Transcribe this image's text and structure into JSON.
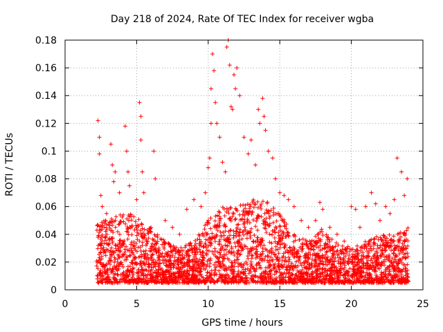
{
  "chart_data": {
    "type": "scatter",
    "title": "Day 218 of 2024, Rate Of TEC Index for receiver wgba",
    "xlabel": "GPS time / hours",
    "ylabel": "ROTI / TECUs",
    "xlim": [
      0,
      25
    ],
    "ylim": [
      0,
      0.18
    ],
    "x_ticks": [
      0,
      5,
      10,
      15,
      20,
      25
    ],
    "y_ticks": [
      0,
      0.02,
      0.04,
      0.06,
      0.08,
      0.1,
      0.12,
      0.14,
      0.16,
      0.18
    ],
    "x_tick_labels": [
      "0",
      "5",
      "10",
      "15",
      "20",
      "25"
    ],
    "y_tick_labels": [
      "0",
      "0.02",
      "0.04",
      "0.06",
      "0.08",
      "0.1",
      "0.12",
      "0.14",
      "0.16",
      "0.18"
    ],
    "grid": true,
    "marker": "+",
    "colors": {
      "points": "#ff0000",
      "grid": "#a0a0a0",
      "axes": "#000000"
    },
    "series": [
      {
        "x": [
          2.3,
          2.4,
          2.4,
          2.5,
          2.6,
          2.9,
          3.2,
          3.3,
          3.4,
          3.5,
          3.8,
          4.2,
          4.3,
          4.4,
          4.5,
          5.0,
          5.2,
          5.3,
          5.3,
          5.4,
          5.5,
          6.0,
          6.2,
          6.3,
          7.0,
          7.5,
          8.0,
          8.5,
          9.0,
          9.5,
          9.8,
          10.0,
          10.1,
          10.2,
          10.2,
          10.3,
          10.4,
          10.5,
          10.6,
          10.8,
          11.0,
          11.2,
          11.3,
          11.4,
          11.5,
          11.6,
          11.7,
          11.8,
          11.9,
          12.0,
          12.2,
          12.5,
          12.8,
          13.0,
          13.3,
          13.5,
          13.6,
          13.8,
          13.9,
          14.0,
          14.2,
          14.5,
          14.7,
          15.0,
          15.3,
          15.6,
          16.0,
          16.5,
          17.0,
          17.5,
          17.8,
          18.0,
          18.5,
          19.0,
          19.5,
          20.0,
          20.3,
          20.6,
          21.0,
          21.4,
          21.7,
          22.0,
          22.4,
          22.7,
          23.0,
          23.2,
          23.5,
          23.7,
          23.9
        ],
        "y": [
          0.122,
          0.11,
          0.098,
          0.068,
          0.06,
          0.055,
          0.105,
          0.09,
          0.078,
          0.085,
          0.07,
          0.118,
          0.1,
          0.085,
          0.075,
          0.065,
          0.135,
          0.125,
          0.108,
          0.085,
          0.07,
          0.045,
          0.1,
          0.08,
          0.05,
          0.045,
          0.04,
          0.058,
          0.065,
          0.06,
          0.07,
          0.088,
          0.095,
          0.12,
          0.145,
          0.17,
          0.158,
          0.135,
          0.12,
          0.11,
          0.092,
          0.085,
          0.175,
          0.18,
          0.162,
          0.132,
          0.13,
          0.155,
          0.145,
          0.16,
          0.14,
          0.11,
          0.098,
          0.108,
          0.09,
          0.13,
          0.12,
          0.138,
          0.125,
          0.115,
          0.1,
          0.095,
          0.08,
          0.07,
          0.068,
          0.065,
          0.06,
          0.05,
          0.045,
          0.05,
          0.063,
          0.058,
          0.045,
          0.04,
          0.035,
          0.06,
          0.058,
          0.045,
          0.06,
          0.07,
          0.062,
          0.05,
          0.06,
          0.055,
          0.065,
          0.095,
          0.085,
          0.068,
          0.08
        ],
        "bulk": {
          "x_range": [
            2.2,
            24.0
          ],
          "floor": 0.005,
          "envelope_x": [
            2.2,
            3,
            4,
            5,
            6,
            7,
            8,
            9,
            10,
            11,
            12,
            13,
            14,
            15,
            16,
            17,
            18,
            19,
            20,
            21,
            22,
            23,
            24
          ],
          "envelope_y": [
            0.05,
            0.05,
            0.055,
            0.055,
            0.045,
            0.035,
            0.03,
            0.035,
            0.05,
            0.06,
            0.06,
            0.065,
            0.065,
            0.055,
            0.04,
            0.035,
            0.045,
            0.035,
            0.03,
            0.035,
            0.04,
            0.04,
            0.045
          ]
        }
      }
    ]
  }
}
